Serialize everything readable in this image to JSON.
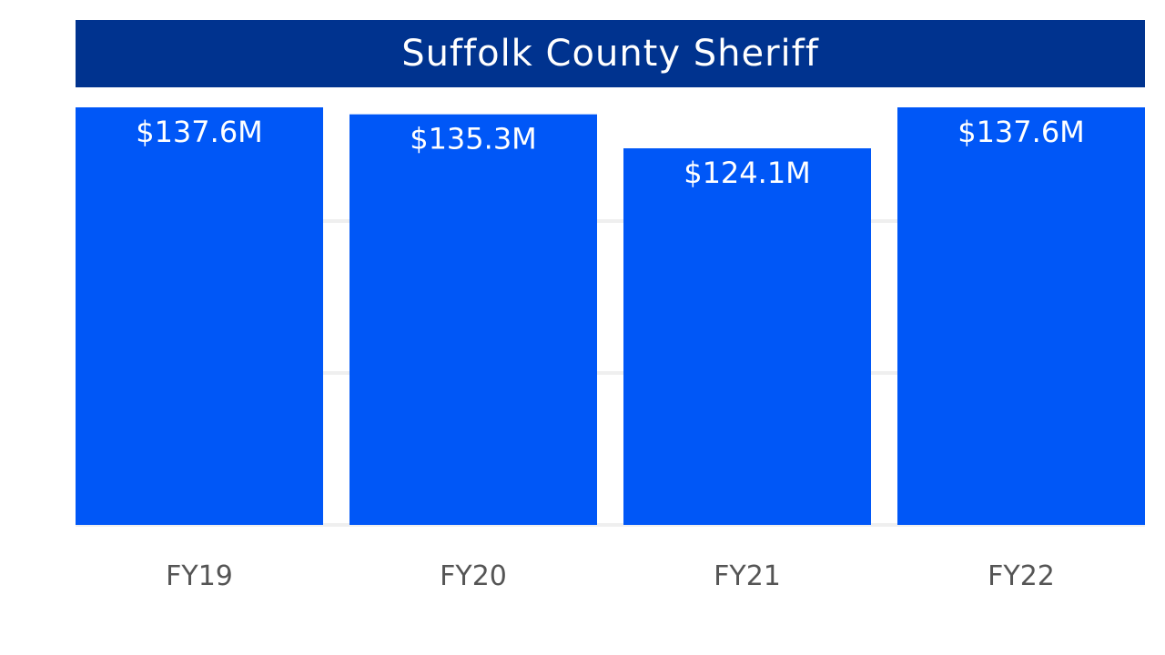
{
  "chart_data": {
    "type": "bar",
    "title": "Suffolk County Sheriff",
    "categories": [
      "FY19",
      "FY20",
      "FY21",
      "FY22"
    ],
    "values": [
      137.6,
      135.3,
      124.1,
      137.6
    ],
    "data_labels": [
      "$137.6M",
      "$135.3M",
      "$124.1M",
      "$137.6M"
    ],
    "xlabel": "",
    "ylabel": "",
    "ylim": [
      0,
      137.6
    ],
    "grid": true,
    "legend": "none"
  },
  "colors": {
    "title_background": "#00338f",
    "bar": "#0057f7",
    "gridline": "#efefef",
    "tick_label": "#555555",
    "data_label": "#ffffff"
  }
}
